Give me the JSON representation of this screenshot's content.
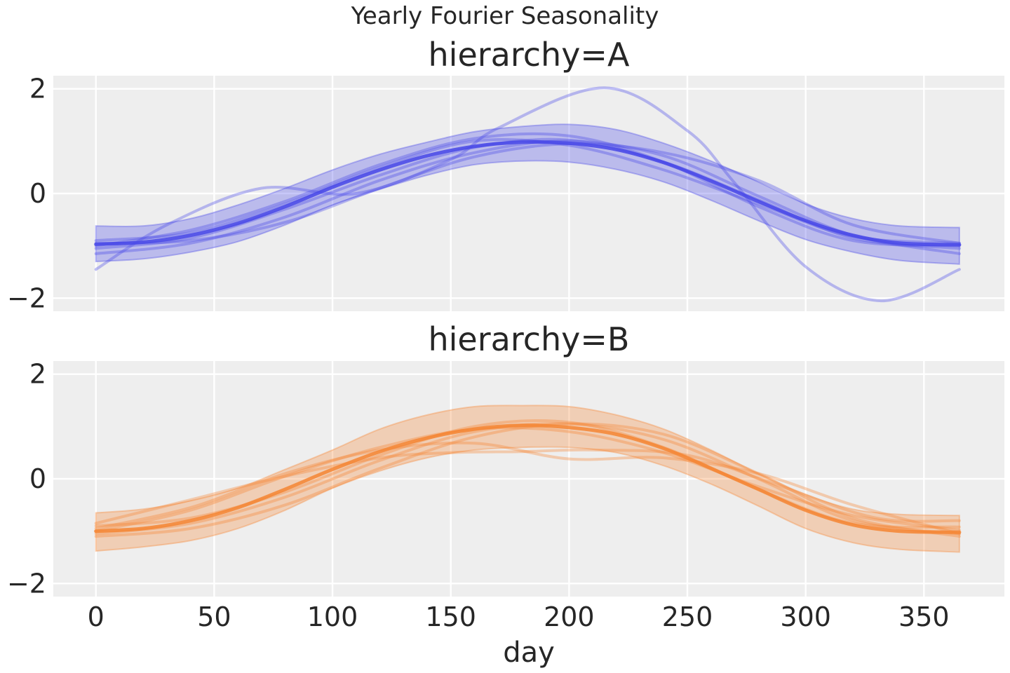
{
  "figure": {
    "suptitle": "Yearly Fourier Seasonality",
    "background": "#ffffff",
    "axes_background": "#eeeeee",
    "grid_color": "#ffffff"
  },
  "chart_data": [
    {
      "type": "line",
      "title": "hierarchy=A",
      "xlabel": "",
      "xlim": [
        -18,
        384
      ],
      "ylim": [
        -2.25,
        2.25
      ],
      "xticks": [
        0,
        50,
        100,
        150,
        200,
        250,
        300,
        350
      ],
      "yticks": [
        2,
        0,
        -2
      ],
      "ytick_labels": [
        "2",
        "0",
        "−2"
      ],
      "grid": true,
      "color": "#4747e8",
      "band": {
        "x": [
          0,
          20,
          40,
          60,
          80,
          100,
          120,
          140,
          160,
          180,
          200,
          220,
          240,
          260,
          280,
          300,
          320,
          340,
          365
        ],
        "lower": [
          -1.3,
          -1.25,
          -1.12,
          -0.92,
          -0.6,
          -0.22,
          0.08,
          0.35,
          0.55,
          0.62,
          0.6,
          0.46,
          0.22,
          -0.13,
          -0.52,
          -0.88,
          -1.12,
          -1.28,
          -1.35
        ],
        "upper": [
          -0.62,
          -0.62,
          -0.48,
          -0.22,
          0.1,
          0.45,
          0.75,
          0.98,
          1.18,
          1.28,
          1.32,
          1.22,
          0.96,
          0.62,
          0.22,
          -0.2,
          -0.48,
          -0.62,
          -0.65
        ]
      },
      "mean": {
        "x": [
          0,
          20,
          40,
          60,
          80,
          100,
          120,
          140,
          160,
          180,
          200,
          220,
          240,
          260,
          280,
          300,
          320,
          340,
          365
        ],
        "y": [
          -0.97,
          -0.93,
          -0.8,
          -0.57,
          -0.25,
          0.12,
          0.45,
          0.72,
          0.9,
          0.98,
          0.96,
          0.84,
          0.59,
          0.24,
          -0.15,
          -0.52,
          -0.8,
          -0.95,
          -0.98
        ]
      },
      "samples": [
        {
          "x": [
            0,
            30,
            70,
            110,
            150,
            170,
            215,
            250,
            270,
            300,
            332,
            365
          ],
          "y": [
            -1.45,
            -0.6,
            0.1,
            0.0,
            0.65,
            1.25,
            2.02,
            1.2,
            0.2,
            -1.4,
            -2.05,
            -1.45
          ]
        },
        {
          "x": [
            0,
            40,
            80,
            120,
            160,
            200,
            240,
            280,
            320,
            365
          ],
          "y": [
            -1.05,
            -0.85,
            -0.3,
            0.35,
            0.88,
            1.02,
            0.6,
            -0.12,
            -0.85,
            -1.05
          ]
        },
        {
          "x": [
            0,
            40,
            80,
            120,
            160,
            200,
            240,
            280,
            320,
            365
          ],
          "y": [
            -0.9,
            -0.75,
            -0.2,
            0.5,
            1.0,
            0.92,
            0.45,
            -0.2,
            -0.82,
            -0.95
          ]
        },
        {
          "x": [
            0,
            40,
            80,
            120,
            160,
            200,
            240,
            280,
            320,
            365
          ],
          "y": [
            -1.15,
            -0.95,
            -0.45,
            0.25,
            0.78,
            1.0,
            0.72,
            -0.05,
            -0.8,
            -1.15
          ]
        },
        {
          "x": [
            0,
            40,
            80,
            120,
            160,
            200,
            240,
            280,
            320,
            365
          ],
          "y": [
            -1.0,
            -0.7,
            -0.15,
            0.55,
            1.05,
            1.1,
            0.6,
            -0.25,
            -0.9,
            -1.0
          ]
        },
        {
          "x": [
            0,
            40,
            80,
            120,
            160,
            200,
            240,
            280,
            320,
            365
          ],
          "y": [
            -0.95,
            -0.9,
            -0.55,
            0.1,
            0.7,
            0.95,
            0.78,
            0.25,
            -0.6,
            -0.95
          ]
        }
      ]
    },
    {
      "type": "line",
      "title": "hierarchy=B",
      "xlabel": "day",
      "xlim": [
        -18,
        384
      ],
      "ylim": [
        -2.25,
        2.25
      ],
      "xticks": [
        0,
        50,
        100,
        150,
        200,
        250,
        300,
        350
      ],
      "xtick_labels": [
        "0",
        "50",
        "100",
        "150",
        "200",
        "250",
        "300",
        "350"
      ],
      "yticks": [
        2,
        0,
        -2
      ],
      "ytick_labels": [
        "2",
        "0",
        "−2"
      ],
      "grid": true,
      "color": "#f58532",
      "band": {
        "x": [
          0,
          20,
          40,
          60,
          80,
          100,
          120,
          140,
          160,
          180,
          200,
          220,
          240,
          260,
          280,
          300,
          320,
          340,
          365
        ],
        "lower": [
          -1.38,
          -1.3,
          -1.18,
          -0.95,
          -0.6,
          -0.18,
          0.15,
          0.4,
          0.55,
          0.6,
          0.6,
          0.5,
          0.25,
          -0.1,
          -0.52,
          -0.95,
          -1.22,
          -1.35,
          -1.4
        ],
        "upper": [
          -0.65,
          -0.58,
          -0.42,
          -0.18,
          0.18,
          0.55,
          0.95,
          1.22,
          1.38,
          1.4,
          1.38,
          1.22,
          0.95,
          0.55,
          0.1,
          -0.3,
          -0.58,
          -0.68,
          -0.7
        ]
      },
      "mean": {
        "x": [
          0,
          20,
          40,
          60,
          80,
          100,
          120,
          140,
          160,
          180,
          200,
          220,
          240,
          260,
          280,
          300,
          320,
          340,
          365
        ],
        "y": [
          -1.0,
          -0.95,
          -0.8,
          -0.55,
          -0.2,
          0.18,
          0.52,
          0.78,
          0.95,
          1.02,
          0.98,
          0.85,
          0.58,
          0.2,
          -0.2,
          -0.6,
          -0.88,
          -1.0,
          -1.02
        ]
      },
      "samples": [
        {
          "x": [
            0,
            40,
            80,
            120,
            150,
            180,
            210,
            250,
            290,
            330,
            365
          ],
          "y": [
            -0.85,
            -0.4,
            0.05,
            0.4,
            0.5,
            0.52,
            0.55,
            0.45,
            -0.15,
            -0.75,
            -0.8
          ]
        },
        {
          "x": [
            0,
            40,
            80,
            120,
            160,
            200,
            240,
            280,
            320,
            365
          ],
          "y": [
            -0.95,
            -0.55,
            0.1,
            0.55,
            0.68,
            0.38,
            0.4,
            0.1,
            -0.5,
            -1.05
          ]
        },
        {
          "x": [
            0,
            40,
            80,
            120,
            160,
            200,
            240,
            280,
            320,
            365
          ],
          "y": [
            -1.05,
            -0.85,
            -0.35,
            0.35,
            0.9,
            1.05,
            0.75,
            0.0,
            -0.8,
            -1.05
          ]
        },
        {
          "x": [
            0,
            40,
            80,
            120,
            160,
            200,
            240,
            280,
            320,
            365
          ],
          "y": [
            -1.1,
            -0.95,
            -0.5,
            0.2,
            0.8,
            1.05,
            0.85,
            0.1,
            -0.75,
            -1.1
          ]
        },
        {
          "x": [
            0,
            40,
            80,
            120,
            160,
            200,
            240,
            280,
            320,
            365
          ],
          "y": [
            -0.9,
            -0.75,
            -0.25,
            0.45,
            1.0,
            1.08,
            0.6,
            -0.2,
            -0.85,
            -0.92
          ]
        },
        {
          "x": [
            0,
            40,
            80,
            120,
            160,
            200,
            240,
            280,
            320,
            365
          ],
          "y": [
            -1.0,
            -0.6,
            0.05,
            0.6,
            0.95,
            0.9,
            0.5,
            -0.15,
            -0.7,
            -0.98
          ]
        }
      ]
    }
  ]
}
